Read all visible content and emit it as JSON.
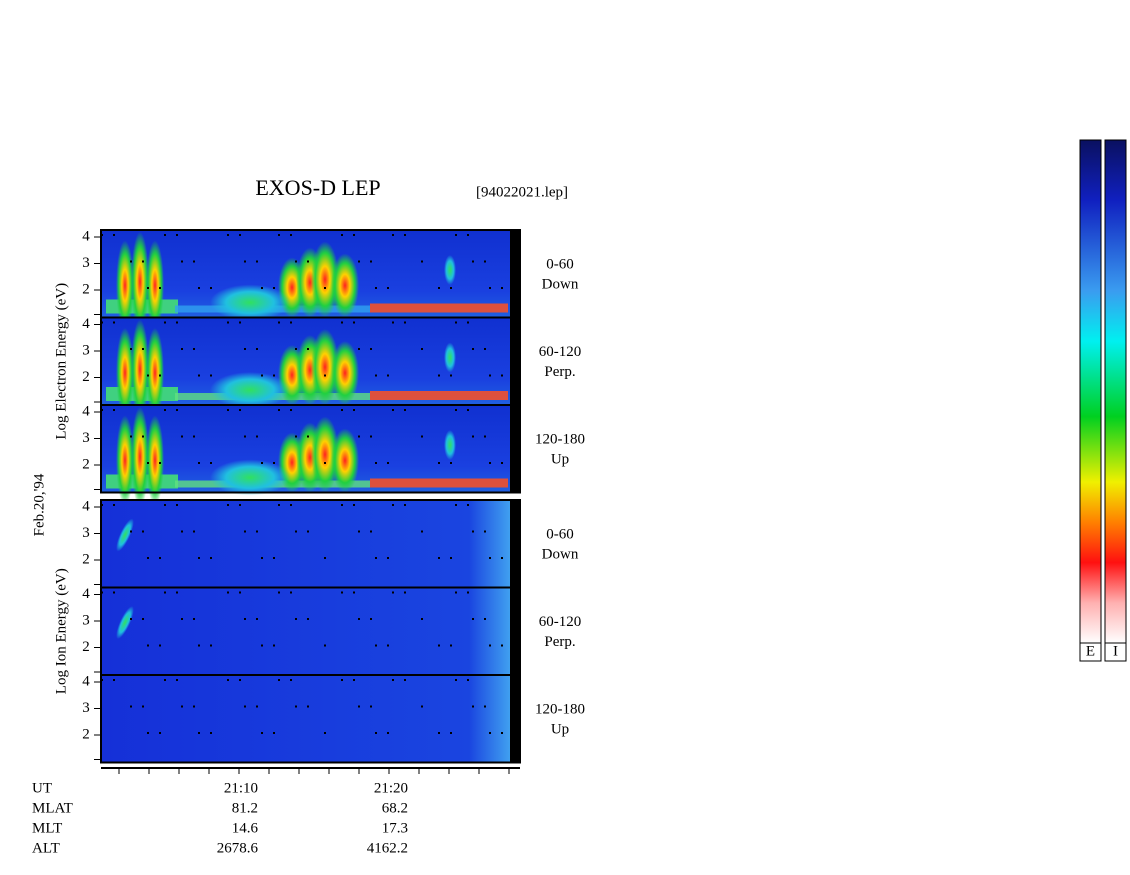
{
  "title": "EXOS-D LEP",
  "file": "[94022021.lep]",
  "date": "Feb.20,'94",
  "groups": [
    {
      "axis_label": "Log Electron Energy (eV)",
      "panels": [
        {
          "ticks": [
            4,
            3,
            2
          ],
          "angle": "0-60",
          "direction": "Down"
        },
        {
          "ticks": [
            4,
            3,
            2
          ],
          "angle": "60-120",
          "direction": "Perp."
        },
        {
          "ticks": [
            4,
            3,
            2
          ],
          "angle": "120-180",
          "direction": "Up"
        }
      ]
    },
    {
      "axis_label": "Log Ion Energy (eV)",
      "panels": [
        {
          "ticks": [
            4,
            3,
            2
          ],
          "angle": "0-60",
          "direction": "Down"
        },
        {
          "ticks": [
            4,
            3,
            2
          ],
          "angle": "60-120",
          "direction": "Perp."
        },
        {
          "ticks": [
            4,
            3,
            2
          ],
          "angle": "120-180",
          "direction": "Up"
        }
      ]
    }
  ],
  "footer": [
    [
      "UT",
      "21:10",
      "21:20"
    ],
    [
      "MLAT",
      "81.2",
      "68.2"
    ],
    [
      "MLT",
      "14.6",
      "17.3"
    ],
    [
      "ALT",
      "2678.6",
      "4162.2"
    ]
  ],
  "colorbars": [
    "E",
    "I"
  ]
}
